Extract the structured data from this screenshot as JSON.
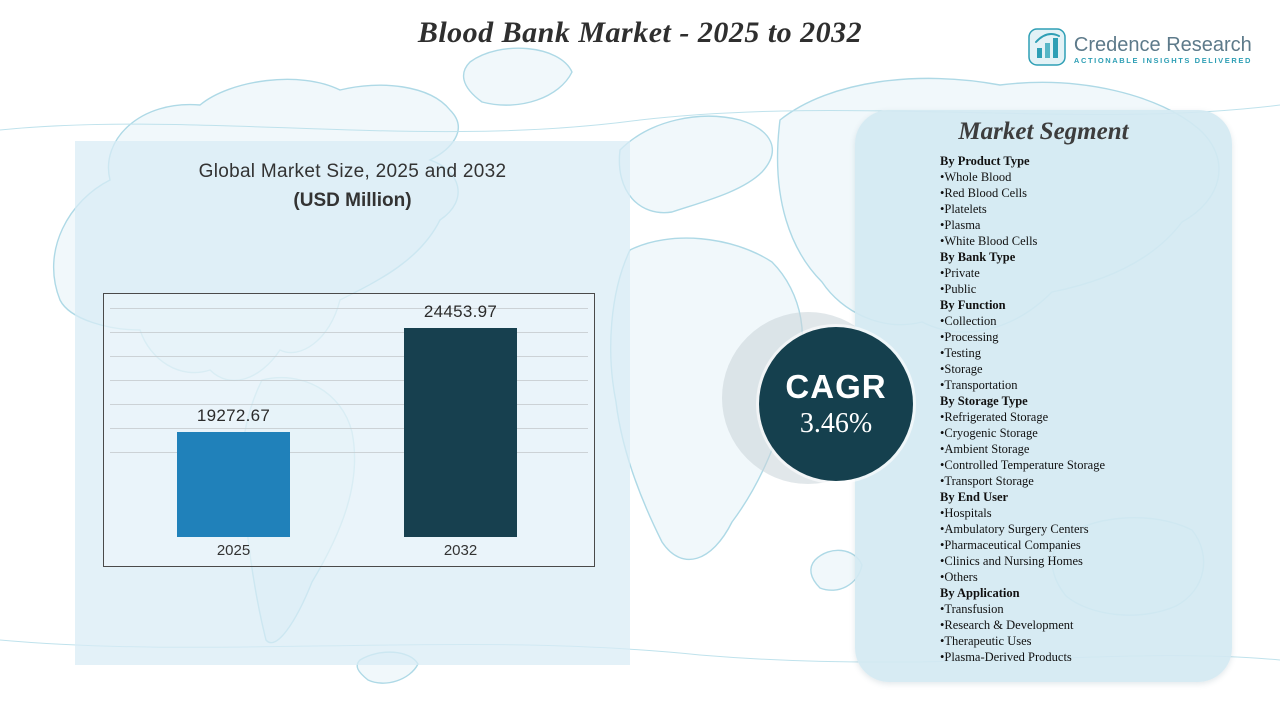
{
  "header": {
    "title": "Blood Bank Market - 2025 to 2032",
    "logo": {
      "name": "Credence Research",
      "tagline": "Actionable Insights Delivered"
    }
  },
  "chart_panel": {
    "subtitle_line1": "Global Market Size, 2025 and 2032",
    "subtitle_line2": "(USD Million)"
  },
  "chart_data": {
    "type": "bar",
    "title": "Global Market Size, 2025 and 2032 (USD Million)",
    "categories": [
      "2025",
      "2032"
    ],
    "values": [
      19272.67,
      24453.97
    ],
    "value_labels": [
      "19272.67",
      "24453.97"
    ],
    "bar_colors": [
      "#2081ba",
      "#17404f"
    ],
    "xlabel": "",
    "ylabel": "USD Million",
    "axis_range": [
      14000,
      26000
    ],
    "grid": true,
    "legend": false
  },
  "cagr": {
    "label": "CAGR",
    "value": "3.46%"
  },
  "market_segment": {
    "title": "Market Segment",
    "bullet": "•",
    "groups": [
      {
        "heading": "By Product Type",
        "items": [
          "Whole Blood",
          "Red Blood Cells",
          "Platelets",
          "Plasma",
          "White Blood Cells"
        ]
      },
      {
        "heading": "By Bank Type",
        "items": [
          "Private",
          "Public"
        ]
      },
      {
        "heading": "By Function",
        "items": [
          "Collection",
          "Processing",
          "Testing",
          "Storage",
          "Transportation"
        ]
      },
      {
        "heading": "By Storage Type",
        "items": [
          "Refrigerated Storage",
          "Cryogenic Storage",
          "Ambient Storage",
          "Controlled Temperature Storage",
          "Transport Storage"
        ]
      },
      {
        "heading": "By End User",
        "items": [
          "Hospitals",
          "Ambulatory Surgery Centers",
          "Pharmaceutical Companies",
          "Clinics and Nursing Homes",
          "Others"
        ]
      },
      {
        "heading": "By Application",
        "items": [
          "Transfusion",
          "Research & Development",
          "Therapeutic Uses",
          "Plasma-Derived Products"
        ]
      }
    ]
  },
  "colors": {
    "bar_2025": "#2081ba",
    "bar_2032": "#17404f",
    "cagr_circle": "#15404e",
    "panel_blue": "#d8ecf5",
    "map_line": "#aed9e6",
    "logo_teal": "#2e9fb5"
  }
}
